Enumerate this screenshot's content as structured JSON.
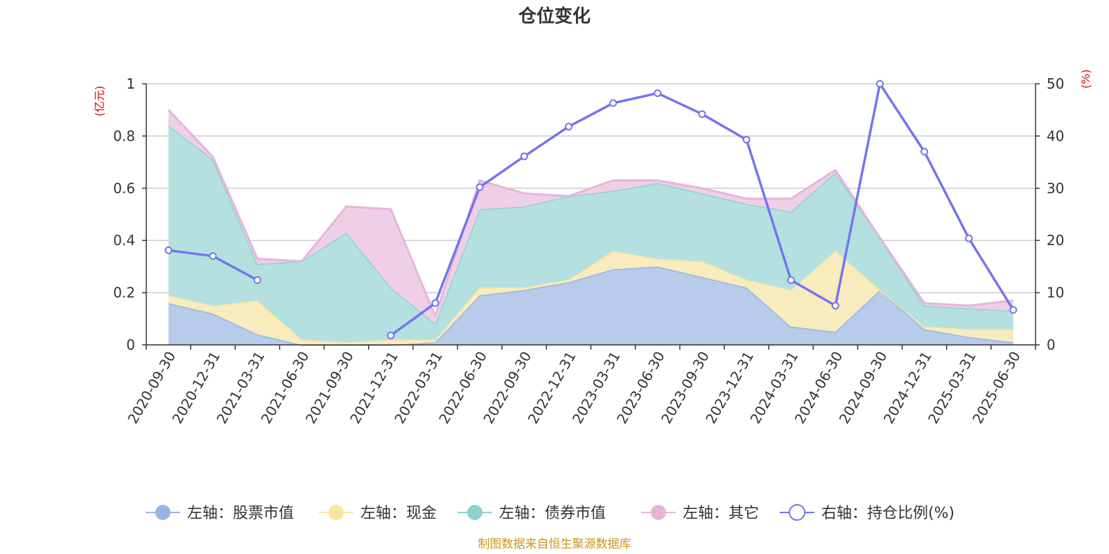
{
  "chart_data": {
    "type": "area",
    "title": "仓位变化",
    "left_unit": "(亿元)",
    "right_unit": "(%)",
    "categories": [
      "2020-09-30",
      "2020-12-31",
      "2021-03-31",
      "2021-06-30",
      "2021-09-30",
      "2021-12-31",
      "2022-03-31",
      "2022-06-30",
      "2022-09-30",
      "2022-12-31",
      "2023-03-31",
      "2023-06-30",
      "2023-09-30",
      "2023-12-31",
      "2024-03-31",
      "2024-06-30",
      "2024-09-30",
      "2024-12-31",
      "2025-03-31",
      "2025-06-30"
    ],
    "y_left": {
      "min": 0,
      "max": 1,
      "ticks": [
        "0",
        "0.2",
        "0.4",
        "0.6",
        "0.8",
        "1"
      ]
    },
    "y_right": {
      "min": 0,
      "max": 50,
      "ticks": [
        "0",
        "10",
        "20",
        "30",
        "40",
        "50"
      ]
    },
    "grid": true,
    "legend_position": "bottom",
    "series": [
      {
        "name": "左轴：股票市值",
        "axis": "left",
        "color": "#9ab4e0",
        "fill": "#b7cbeb",
        "values": [
          0.16,
          0.12,
          0.04,
          0.0,
          0.0,
          0.0,
          0.01,
          0.19,
          0.21,
          0.24,
          0.29,
          0.3,
          0.26,
          0.22,
          0.07,
          0.05,
          0.21,
          0.06,
          0.03,
          0.01
        ]
      },
      {
        "name": "左轴：现金",
        "axis": "left",
        "color": "#f8e6a0",
        "fill": "#f8ebbe",
        "values": [
          0.03,
          0.03,
          0.13,
          0.02,
          0.01,
          0.02,
          0.01,
          0.03,
          0.01,
          0.01,
          0.07,
          0.03,
          0.06,
          0.03,
          0.14,
          0.31,
          0.0,
          0.01,
          0.03,
          0.05
        ]
      },
      {
        "name": "左轴：债券市值",
        "axis": "left",
        "color": "#8ed2d0",
        "fill": "#b4e0e0",
        "values": [
          0.65,
          0.56,
          0.14,
          0.3,
          0.42,
          0.2,
          0.06,
          0.3,
          0.31,
          0.32,
          0.23,
          0.29,
          0.26,
          0.29,
          0.3,
          0.3,
          0.2,
          0.08,
          0.08,
          0.07
        ]
      },
      {
        "name": "左轴：其它",
        "axis": "left",
        "color": "#e6b4da",
        "fill": "#efcfe6",
        "values": [
          0.06,
          0.01,
          0.02,
          0.0,
          0.1,
          0.3,
          0.03,
          0.11,
          0.05,
          0.0,
          0.04,
          0.01,
          0.02,
          0.02,
          0.05,
          0.01,
          0.0,
          0.01,
          0.01,
          0.04
        ]
      },
      {
        "name": "右轴：持仓比例(%)",
        "axis": "right",
        "type": "line",
        "color": "#7474ee",
        "values": [
          18.1,
          17.0,
          12.4,
          null,
          null,
          1.8,
          8.0,
          30.2,
          36.1,
          41.8,
          46.3,
          48.2,
          44.2,
          39.3,
          12.4,
          7.5,
          50.0,
          37.0,
          20.4,
          6.7
        ]
      }
    ]
  },
  "footer": {
    "source": "制图数据来自恒生聚源数据库"
  }
}
